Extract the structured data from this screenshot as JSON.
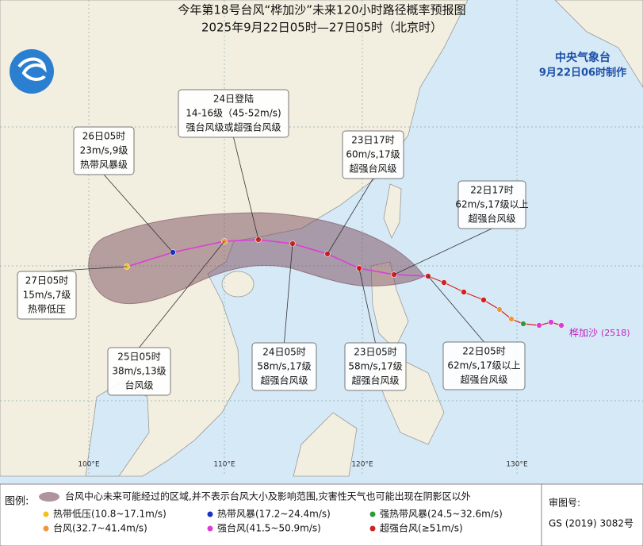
{
  "header": {
    "title": "今年第18号台风“桦加沙”未来120小时路径概率预报图",
    "subtitle": "2025年9月22日05时—27日05时（北京时）",
    "agency": "中央气象台",
    "issued": "9月22日06时制作"
  },
  "callouts": [
    {
      "lines": [
        "24日登陆",
        "14-16级（45-52m/s)",
        "强台风级或超强台风级"
      ]
    },
    {
      "lines": [
        "26日05时",
        "23m/s,9级",
        "热带风暴级"
      ]
    },
    {
      "lines": [
        "23日17时",
        "60m/s,17级",
        "超强台风级"
      ]
    },
    {
      "lines": [
        "22日17时",
        "62m/s,17级以上",
        "超强台风级"
      ]
    },
    {
      "lines": [
        "27日05时",
        "15m/s,7级",
        "热带低压"
      ]
    },
    {
      "lines": [
        "25日05时",
        "38m/s,13级",
        "台风级"
      ]
    },
    {
      "lines": [
        "24日05时",
        "58m/s,17级",
        "超强台风级"
      ]
    },
    {
      "lines": [
        "23日05时",
        "58m/s,17级",
        "超强台风级"
      ]
    },
    {
      "lines": [
        "22日05时",
        "62m/s,17级以上",
        "超强台风级"
      ]
    }
  ],
  "storm_label": {
    "name": "桦加沙",
    "code": "(2518)"
  },
  "longitude_labels": [
    "100°E",
    "110°E",
    "120°E",
    "130°E"
  ],
  "legend": {
    "title": "图例:",
    "cone": "台风中心未来可能经过的区域,并不表示台风大小及影响范围,灾害性天气也可能出现在阴影区以外",
    "items": [
      {
        "label": "热带低压(10.8~17.1m/s)",
        "color": "#f2c21b"
      },
      {
        "label": "热带风暴(17.2~24.4m/s)",
        "color": "#1f2fc4"
      },
      {
        "label": "强热带风暴(24.5~32.6m/s)",
        "color": "#2f9a3a"
      },
      {
        "label": "台风(32.7~41.4m/s)",
        "color": "#f0963a"
      },
      {
        "label": "强台风(41.5~50.9m/s)",
        "color": "#e03ad6"
      },
      {
        "label": "超强台风(≥51m/s)",
        "color": "#d42020"
      }
    ]
  },
  "review": {
    "label": "审图号:",
    "number": "GS (2019) 3082号"
  }
}
